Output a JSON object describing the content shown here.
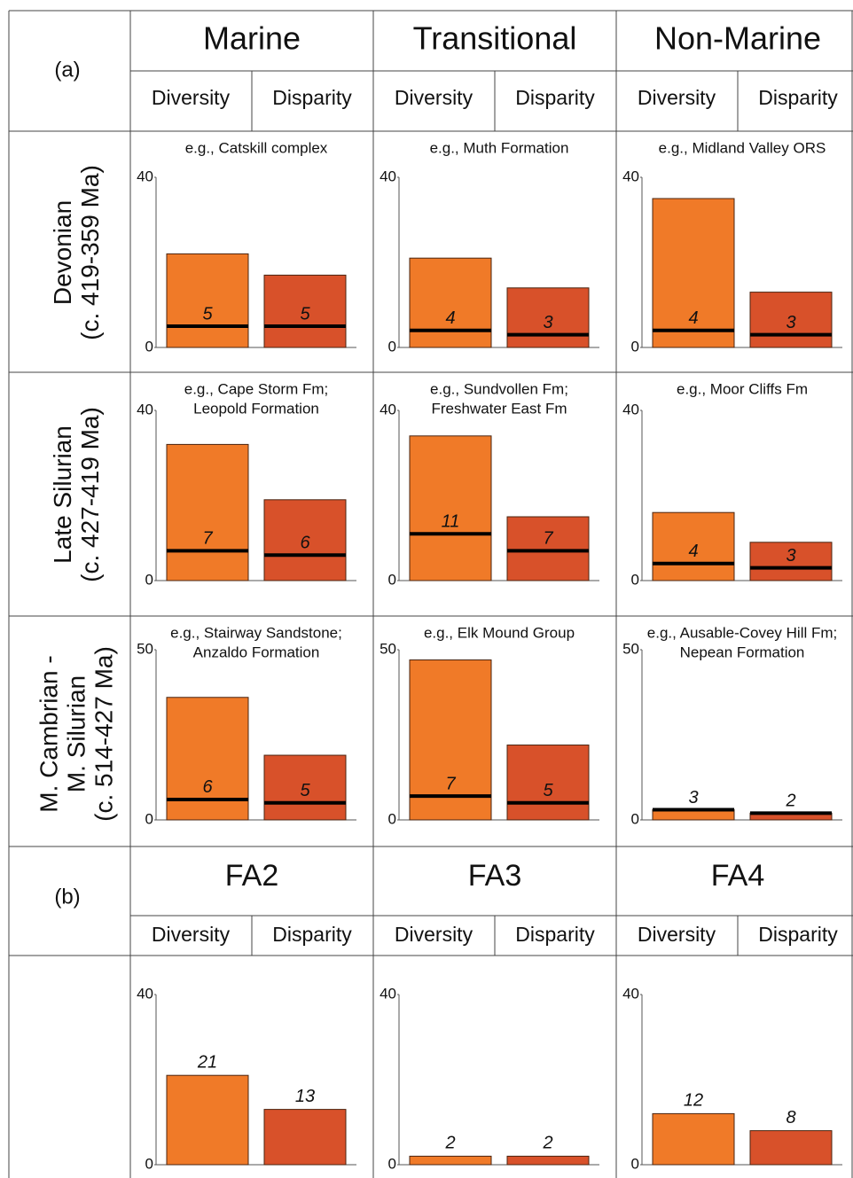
{
  "panel_a": {
    "label": "(a)",
    "groups": [
      {
        "title": "Marine",
        "subheaders": [
          "Diversity",
          "Disparity"
        ]
      },
      {
        "title": "Transitional",
        "subheaders": [
          "Diversity",
          "Disparity"
        ]
      },
      {
        "title": "Non-Marine",
        "subheaders": [
          "Diversity",
          "Disparity"
        ]
      }
    ],
    "rows": [
      {
        "lines": [
          "Devonian",
          "(c. 419-359 Ma)"
        ]
      },
      {
        "lines": [
          "Late Silurian",
          "(c. 427-419 Ma)"
        ]
      },
      {
        "lines": [
          "M. Cambrian -",
          "M. Silurian",
          "(c. 514-427 Ma)"
        ]
      }
    ]
  },
  "panel_b": {
    "label": "(b)",
    "groups": [
      {
        "title": "FA2",
        "subheaders": [
          "Diversity",
          "Disparity"
        ]
      },
      {
        "title": "FA3",
        "subheaders": [
          "Diversity",
          "Disparity"
        ]
      },
      {
        "title": "FA4",
        "subheaders": [
          "Diversity",
          "Disparity"
        ]
      }
    ]
  },
  "chart_data": [
    {
      "type": "bar",
      "annotation": [
        "e.g., Catskill complex"
      ],
      "values": [
        22,
        17
      ],
      "line_values": [
        5,
        5
      ],
      "colors": [
        "#f07a28",
        "#d8512a"
      ],
      "ylim": [
        0,
        40
      ],
      "yticks": [
        0,
        40
      ]
    },
    {
      "type": "bar",
      "annotation": [
        "e.g., Muth Formation"
      ],
      "values": [
        21,
        14
      ],
      "line_values": [
        4,
        3
      ],
      "colors": [
        "#f07a28",
        "#d8512a"
      ],
      "ylim": [
        0,
        40
      ],
      "yticks": [
        0,
        40
      ]
    },
    {
      "type": "bar",
      "annotation": [
        "e.g., Midland Valley ORS"
      ],
      "values": [
        35,
        13
      ],
      "line_values": [
        4,
        3
      ],
      "colors": [
        "#f07a28",
        "#d8512a"
      ],
      "ylim": [
        0,
        40
      ],
      "yticks": [
        0,
        40
      ]
    },
    {
      "type": "bar",
      "annotation": [
        "e.g., Cape Storm Fm;",
        "Leopold Formation"
      ],
      "values": [
        32,
        19
      ],
      "line_values": [
        7,
        6
      ],
      "colors": [
        "#f07a28",
        "#d8512a"
      ],
      "ylim": [
        0,
        40
      ],
      "yticks": [
        0,
        40
      ]
    },
    {
      "type": "bar",
      "annotation": [
        "e.g., Sundvollen Fm;",
        "Freshwater East Fm"
      ],
      "values": [
        34,
        15
      ],
      "line_values": [
        11,
        7
      ],
      "colors": [
        "#f07a28",
        "#d8512a"
      ],
      "ylim": [
        0,
        40
      ],
      "yticks": [
        0,
        40
      ]
    },
    {
      "type": "bar",
      "annotation": [
        "e.g., Moor Cliffs Fm"
      ],
      "values": [
        16,
        9
      ],
      "line_values": [
        4,
        3
      ],
      "colors": [
        "#f07a28",
        "#d8512a"
      ],
      "ylim": [
        0,
        40
      ],
      "yticks": [
        0,
        40
      ]
    },
    {
      "type": "bar",
      "annotation": [
        "e.g., Stairway Sandstone;",
        "Anzaldo Formation"
      ],
      "values": [
        36,
        19
      ],
      "line_values": [
        6,
        5
      ],
      "colors": [
        "#f07a28",
        "#d8512a"
      ],
      "ylim": [
        0,
        50
      ],
      "yticks": [
        0,
        50
      ]
    },
    {
      "type": "bar",
      "annotation": [
        "e.g., Elk Mound Group"
      ],
      "values": [
        47,
        22
      ],
      "line_values": [
        7,
        5
      ],
      "colors": [
        "#f07a28",
        "#d8512a"
      ],
      "ylim": [
        0,
        50
      ],
      "yticks": [
        0,
        50
      ]
    },
    {
      "type": "bar",
      "annotation": [
        "e.g., Ausable-Covey Hill Fm;",
        "Nepean Formation"
      ],
      "values": [
        3,
        2
      ],
      "line_values": [
        3,
        2
      ],
      "colors": [
        "#f07a28",
        "#d8512a"
      ],
      "ylim": [
        0,
        50
      ],
      "yticks": [
        0,
        50
      ]
    },
    {
      "type": "bar",
      "values": [
        21,
        13
      ],
      "colors": [
        "#f07a28",
        "#d8512a"
      ],
      "ylim": [
        0,
        40
      ],
      "yticks": [
        0,
        40
      ]
    },
    {
      "type": "bar",
      "values": [
        2,
        2
      ],
      "colors": [
        "#f07a28",
        "#d8512a"
      ],
      "ylim": [
        0,
        40
      ],
      "yticks": [
        0,
        40
      ]
    },
    {
      "type": "bar",
      "values": [
        12,
        8
      ],
      "colors": [
        "#f07a28",
        "#d8512a"
      ],
      "ylim": [
        0,
        40
      ],
      "yticks": [
        0,
        40
      ]
    }
  ]
}
